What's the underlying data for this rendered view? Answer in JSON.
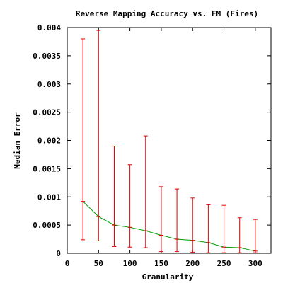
{
  "chart_data": {
    "type": "line",
    "title": "Reverse Mapping Accuracy vs. FM (Fires)",
    "xlabel": "Granularity",
    "ylabel": "Median Error",
    "xlim": [
      0,
      325
    ],
    "ylim": [
      0,
      0.004
    ],
    "x_ticks": [
      0,
      50,
      100,
      150,
      200,
      250,
      300
    ],
    "y_ticks": [
      0,
      0.0005,
      0.001,
      0.0015,
      0.002,
      0.0025,
      0.003,
      0.0035,
      0.004
    ],
    "x_tick_labels": [
      "0",
      "50",
      "100",
      "150",
      "200",
      "250",
      "300"
    ],
    "y_tick_labels": [
      "0",
      "0.0005",
      "0.001",
      "0.0015",
      "0.002",
      "0.0025",
      "0.003",
      "0.0035",
      "0.004"
    ],
    "grid": false,
    "legend": "none",
    "colors": {
      "line": "#00a000",
      "errorbar": "#e00000",
      "axes": "#000000"
    },
    "series": [
      {
        "x": [
          25,
          50,
          75,
          100,
          125,
          150,
          175,
          200,
          225,
          250,
          275,
          300
        ],
        "y": [
          0.00092,
          0.00065,
          0.0005,
          0.00046,
          0.0004,
          0.00032,
          0.00025,
          0.00023,
          0.00019,
          0.00011,
          0.0001,
          4e-05
        ],
        "low": [
          0.00024,
          0.00022,
          0.00012,
          0.00011,
          0.0001,
          3e-05,
          3e-05,
          2e-05,
          1e-05,
          1e-05,
          1e-05,
          1e-05
        ],
        "high": [
          0.0038,
          0.00395,
          0.0019,
          0.00157,
          0.00208,
          0.00118,
          0.00114,
          0.00098,
          0.00086,
          0.00085,
          0.00063,
          0.0006
        ]
      }
    ]
  }
}
